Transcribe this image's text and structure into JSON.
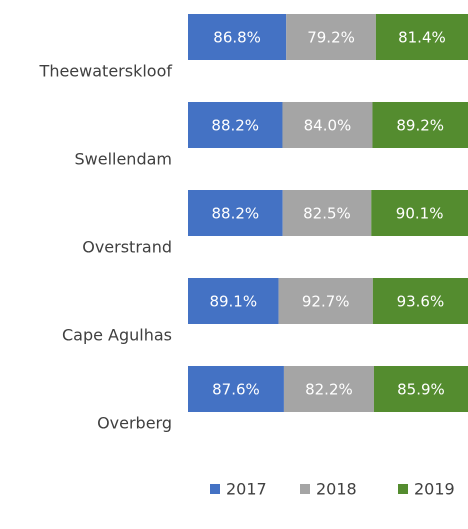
{
  "chart_data": {
    "type": "bar",
    "orientation": "horizontal",
    "stacked": "percent",
    "categories": [
      "Theewaterskloof",
      "Swellendam",
      "Overstrand",
      "Cape Agulhas",
      "Overberg"
    ],
    "series": [
      {
        "name": "2017",
        "color": "#4472c4",
        "values": [
          86.8,
          88.2,
          88.2,
          89.1,
          87.6
        ],
        "value_labels": [
          "86.8%",
          "88.2%",
          "88.2%",
          "89.1%",
          "87.6%"
        ]
      },
      {
        "name": "2018",
        "color": "#a5a5a5",
        "values": [
          79.2,
          84.0,
          82.5,
          92.7,
          82.2
        ],
        "value_labels": [
          "79.2%",
          "84.0%",
          "82.5%",
          "92.7%",
          "82.2%"
        ]
      },
      {
        "name": "2019",
        "color": "#548c2f",
        "values": [
          81.4,
          89.2,
          90.1,
          93.6,
          85.9
        ],
        "value_labels": [
          "81.4%",
          "89.2%",
          "90.1%",
          "93.6%",
          "85.9%"
        ]
      }
    ],
    "legend": "bottom"
  }
}
